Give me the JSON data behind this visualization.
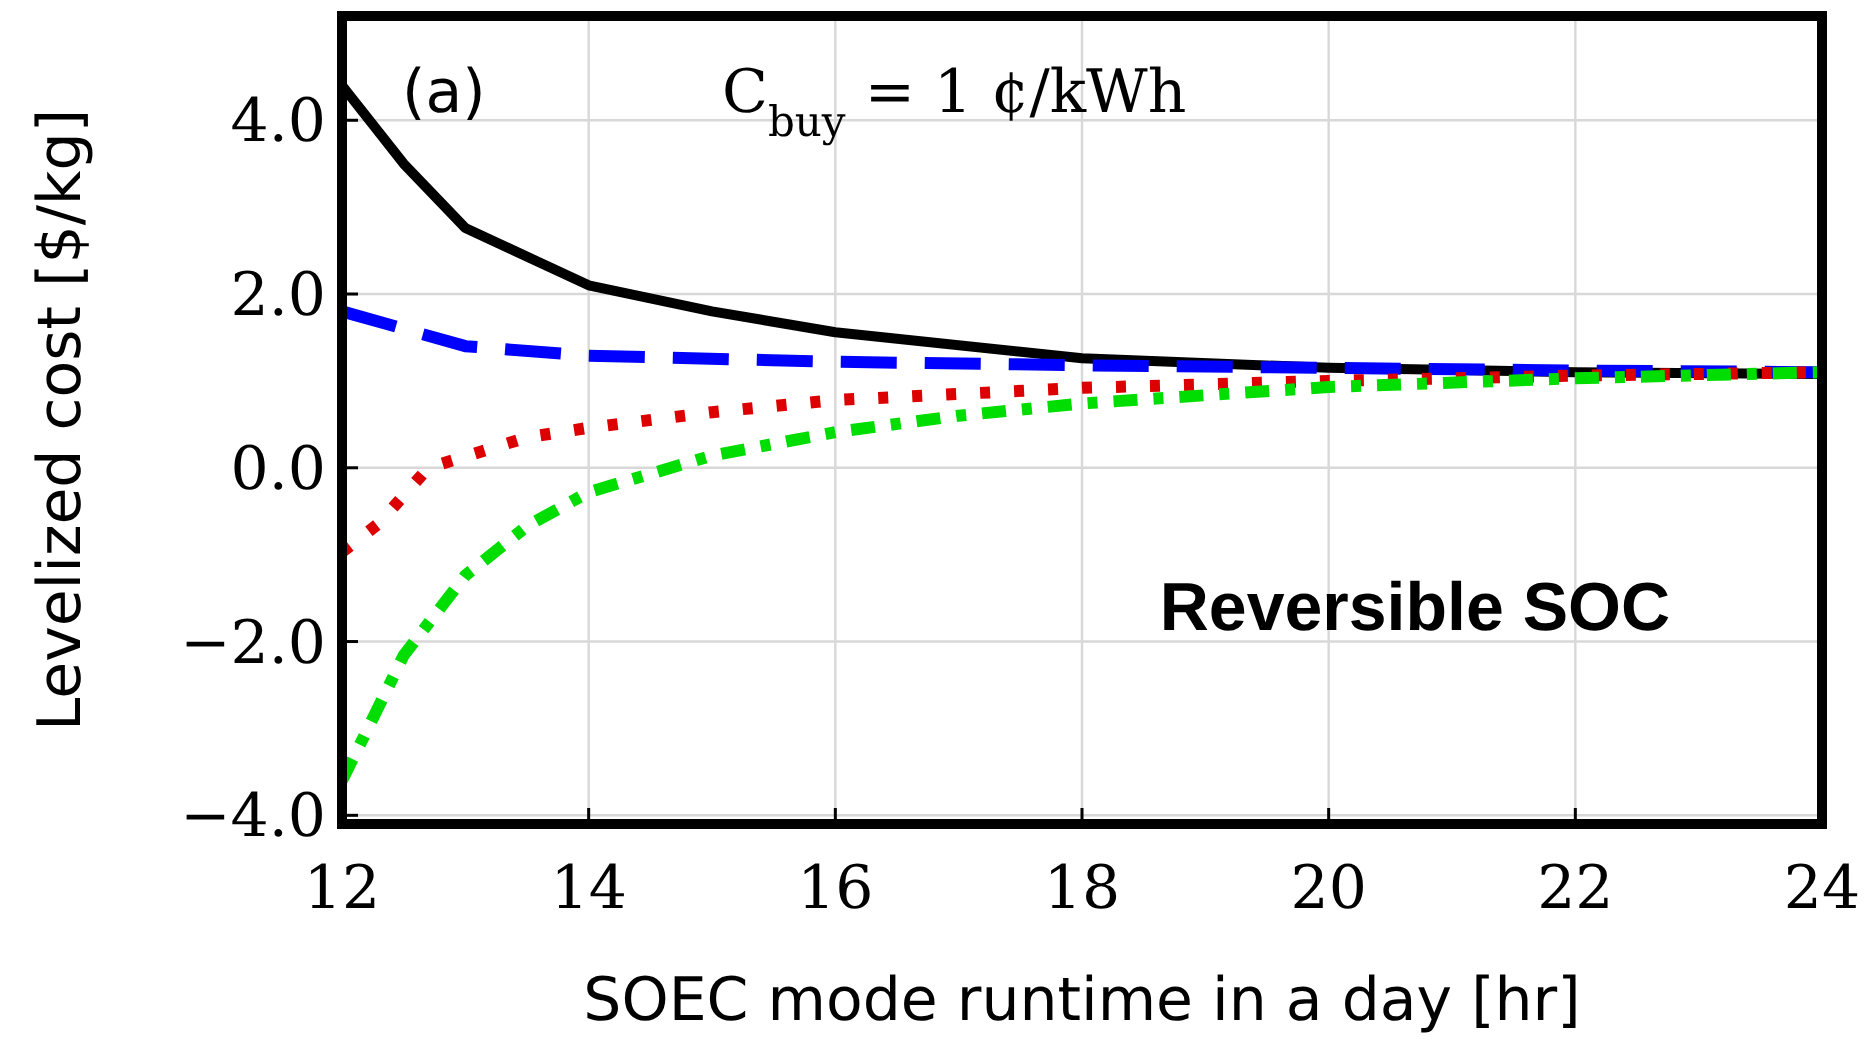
{
  "chart_data": {
    "type": "line",
    "xlabel": "SOEC mode runtime in a day [hr]",
    "ylabel": "Levelized cost [$/kg]",
    "annotations": [
      "(a)",
      "C$_{buy}$ = 1 ¢/kWh",
      "Reversible SOC"
    ],
    "xlim": [
      12,
      24
    ],
    "xticks": [
      12,
      14,
      16,
      18,
      20,
      22,
      24
    ],
    "ylim": [
      -4.1,
      5.2
    ],
    "yticks": [
      {
        "value": -4,
        "label": "−4.0"
      },
      {
        "value": -2,
        "label": "−2.0"
      },
      {
        "value": 0,
        "label": "0.0"
      },
      {
        "value": 2,
        "label": "2.0"
      },
      {
        "value": 4,
        "label": "4.0"
      }
    ],
    "grid": true,
    "series": [
      {
        "color": "#000000",
        "line_style": "solid",
        "x": [
          12,
          12.5,
          13,
          14,
          15,
          16,
          18,
          20,
          22,
          24
        ],
        "values": [
          4.4,
          3.5,
          2.76,
          2.1,
          1.8,
          1.56,
          1.26,
          1.15,
          1.1,
          1.08
        ]
      },
      {
        "color": "#0000ff",
        "line_style": "dashed",
        "x": [
          12,
          13,
          14,
          16,
          18,
          20,
          22,
          24
        ],
        "values": [
          1.8,
          1.4,
          1.29,
          1.22,
          1.18,
          1.15,
          1.12,
          1.1
        ]
      },
      {
        "color": "#dd0000",
        "line_style": "dotted",
        "x": [
          12,
          12.3,
          12.7,
          13.5,
          14,
          15,
          16,
          18,
          20,
          22,
          24
        ],
        "values": [
          -0.97,
          -0.64,
          0,
          0.35,
          0.46,
          0.64,
          0.78,
          0.92,
          1.0,
          1.06,
          1.1
        ]
      },
      {
        "color": "#00dd00",
        "line_style": "dashdot",
        "x": [
          12,
          12.2,
          12.5,
          13,
          13.5,
          14,
          15,
          16,
          17,
          18,
          20,
          22,
          24
        ],
        "values": [
          -3.6,
          -3.03,
          -2.16,
          -1.24,
          -0.67,
          -0.28,
          0.14,
          0.41,
          0.6,
          0.74,
          0.93,
          1.03,
          1.1
        ]
      }
    ]
  }
}
